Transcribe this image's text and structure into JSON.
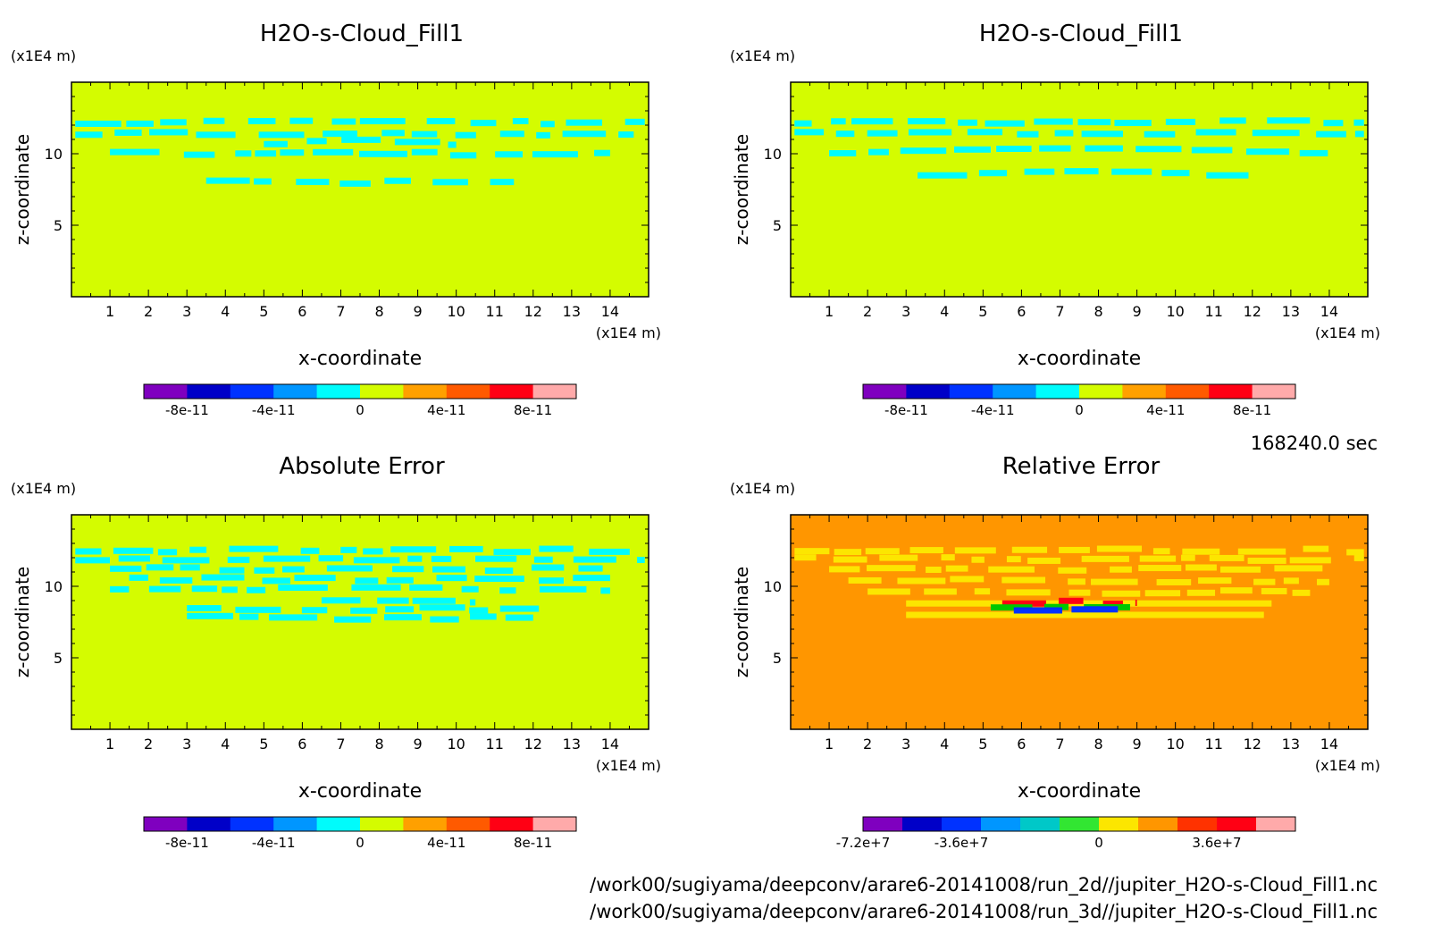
{
  "figure": {
    "time_label": "168240.0 sec",
    "file_paths": [
      "/work00/sugiyama/deepconv/arare6-20141008/run_2d//jupiter_H2O-s-Cloud_Fill1.nc",
      "/work00/sugiyama/deepconv/arare6-20141008/run_3d//jupiter_H2O-s-Cloud_Fill1.nc"
    ]
  },
  "chart_data": [
    {
      "type": "heatmap",
      "title": "H2O-s-Cloud_Fill1",
      "xlabel": "x-coordinate",
      "ylabel": "z-coordinate",
      "x_unit": "(x1E4 m)",
      "y_unit": "(x1E4 m)",
      "xlim": [
        0,
        15
      ],
      "ylim": [
        0,
        15
      ],
      "xticks": [
        "1",
        "2",
        "3",
        "4",
        "5",
        "6",
        "7",
        "8",
        "9",
        "10",
        "11",
        "12",
        "13",
        "14"
      ],
      "yticks": [
        "5",
        "10"
      ],
      "background_color": "#d4fc00",
      "field": [
        {
          "color": "#00fcfc",
          "z": 12.2,
          "x_from": 0.1,
          "x_to": 14.9,
          "pattern": "broken"
        },
        {
          "color": "#00fcfc",
          "z": 11.4,
          "x_from": 0.1,
          "x_to": 14.9,
          "pattern": "broken"
        },
        {
          "color": "#00fcfc",
          "z": 10.6,
          "x_from": 5.0,
          "x_to": 10.0,
          "pattern": "arch"
        },
        {
          "color": "#00fcfc",
          "z": 10.0,
          "x_from": 1.0,
          "x_to": 14.0,
          "pattern": "broken"
        },
        {
          "color": "#00fcfc",
          "z": 8.0,
          "x_from": 3.5,
          "x_to": 11.5,
          "pattern": "broken"
        }
      ],
      "colorbar": {
        "colors": [
          "#7f00bf",
          "#0000c8",
          "#0032ff",
          "#0096ff",
          "#00fcfc",
          "#d4fc00",
          "#ffa000",
          "#ff5a00",
          "#ff0014",
          "#ffaaaa"
        ],
        "tick_labels": [
          "-8e-11",
          "-4e-11",
          "0",
          "4e-11",
          "8e-11"
        ]
      }
    },
    {
      "type": "heatmap",
      "title": "H2O-s-Cloud_Fill1",
      "xlabel": "x-coordinate",
      "ylabel": "z-coordinate",
      "x_unit": "(x1E4 m)",
      "y_unit": "(x1E4 m)",
      "xlim": [
        0,
        15
      ],
      "ylim": [
        0,
        15
      ],
      "xticks": [
        "1",
        "2",
        "3",
        "4",
        "5",
        "6",
        "7",
        "8",
        "9",
        "10",
        "11",
        "12",
        "13",
        "14"
      ],
      "yticks": [
        "5",
        "10"
      ],
      "background_color": "#d4fc00",
      "field": [
        {
          "color": "#00fcfc",
          "z": 12.2,
          "x_from": 0.1,
          "x_to": 14.9,
          "pattern": "broken"
        },
        {
          "color": "#00fcfc",
          "z": 11.4,
          "x_from": 0.1,
          "x_to": 14.9,
          "pattern": "broken"
        },
        {
          "color": "#00fcfc",
          "z": 10.0,
          "x_from": 1.0,
          "x_to": 14.0,
          "pattern": "arch"
        },
        {
          "color": "#00fcfc",
          "z": 8.4,
          "x_from": 3.3,
          "x_to": 12.0,
          "pattern": "arch"
        }
      ],
      "colorbar": {
        "colors": [
          "#7f00bf",
          "#0000c8",
          "#0032ff",
          "#0096ff",
          "#00fcfc",
          "#d4fc00",
          "#ffa000",
          "#ff5a00",
          "#ff0014",
          "#ffaaaa"
        ],
        "tick_labels": [
          "-8e-11",
          "-4e-11",
          "0",
          "4e-11",
          "8e-11"
        ]
      }
    },
    {
      "type": "heatmap",
      "title": "Absolute Error",
      "xlabel": "x-coordinate",
      "ylabel": "z-coordinate",
      "x_unit": "(x1E4 m)",
      "y_unit": "(x1E4 m)",
      "xlim": [
        0,
        15
      ],
      "ylim": [
        0,
        15
      ],
      "xticks": [
        "1",
        "2",
        "3",
        "4",
        "5",
        "6",
        "7",
        "8",
        "9",
        "10",
        "11",
        "12",
        "13",
        "14"
      ],
      "yticks": [
        "5",
        "10"
      ],
      "background_color": "#d4fc00",
      "field": [
        {
          "color": "#00fcfc",
          "z": 12.5,
          "x_from": 0.1,
          "x_to": 14.9,
          "pattern": "broken"
        },
        {
          "color": "#00fcfc",
          "z": 11.9,
          "x_from": 0.1,
          "x_to": 14.9,
          "pattern": "broken"
        },
        {
          "color": "#00fcfc",
          "z": 11.2,
          "x_from": 1.0,
          "x_to": 14.0,
          "pattern": "broken"
        },
        {
          "color": "#00fcfc",
          "z": 10.5,
          "x_from": 1.5,
          "x_to": 14.0,
          "pattern": "broken"
        },
        {
          "color": "#00fcfc",
          "z": 9.8,
          "x_from": 1.0,
          "x_to": 14.0,
          "pattern": "broken"
        },
        {
          "color": "#00fcfc",
          "z": 9.0,
          "x_from": 6.5,
          "x_to": 10.5,
          "pattern": "broken"
        },
        {
          "color": "#00fcfc",
          "z": 8.4,
          "x_from": 3.0,
          "x_to": 12.3,
          "pattern": "broken"
        },
        {
          "color": "#00fcfc",
          "z": 7.8,
          "x_from": 3.0,
          "x_to": 12.0,
          "pattern": "broken"
        }
      ],
      "colorbar": {
        "colors": [
          "#7f00bf",
          "#0000c8",
          "#0032ff",
          "#0096ff",
          "#00fcfc",
          "#d4fc00",
          "#ffa000",
          "#ff5a00",
          "#ff0014",
          "#ffaaaa"
        ],
        "tick_labels": [
          "-8e-11",
          "-4e-11",
          "0",
          "4e-11",
          "8e-11"
        ]
      }
    },
    {
      "type": "heatmap",
      "title": "Relative Error",
      "xlabel": "x-coordinate",
      "ylabel": "z-coordinate",
      "x_unit": "(x1E4 m)",
      "y_unit": "(x1E4 m)",
      "xlim": [
        0,
        15
      ],
      "ylim": [
        0,
        15
      ],
      "xticks": [
        "1",
        "2",
        "3",
        "4",
        "5",
        "6",
        "7",
        "8",
        "9",
        "10",
        "11",
        "12",
        "13",
        "14"
      ],
      "yticks": [
        "5",
        "10"
      ],
      "background_color": "#ff9600",
      "field": [
        {
          "color": "#fce600",
          "z": 12.5,
          "x_from": 0.1,
          "x_to": 14.9,
          "pattern": "broken"
        },
        {
          "color": "#fce600",
          "z": 11.9,
          "x_from": 0.1,
          "x_to": 14.9,
          "pattern": "broken"
        },
        {
          "color": "#fce600",
          "z": 11.2,
          "x_from": 1.0,
          "x_to": 14.0,
          "pattern": "broken"
        },
        {
          "color": "#fce600",
          "z": 10.4,
          "x_from": 1.5,
          "x_to": 14.0,
          "pattern": "broken"
        },
        {
          "color": "#fce600",
          "z": 9.6,
          "x_from": 2.0,
          "x_to": 13.5,
          "pattern": "broken"
        },
        {
          "color": "#fce600",
          "z": 8.8,
          "x_from": 3.0,
          "x_to": 12.5,
          "pattern": "solid"
        },
        {
          "color": "#fce600",
          "z": 8.0,
          "x_from": 3.0,
          "x_to": 12.3,
          "pattern": "solid"
        },
        {
          "color": "#ff0014",
          "z": 8.9,
          "x_from": 5.5,
          "x_to": 9.0,
          "pattern": "broken"
        },
        {
          "color": "#00c800",
          "z": 8.6,
          "x_from": 5.2,
          "x_to": 9.3,
          "pattern": "broken"
        },
        {
          "color": "#0032ff",
          "z": 8.3,
          "x_from": 5.8,
          "x_to": 8.6,
          "pattern": "broken"
        }
      ],
      "colorbar": {
        "colors": [
          "#7f00bf",
          "#0000c8",
          "#0032ff",
          "#0096ff",
          "#00c8c8",
          "#32e632",
          "#fce600",
          "#ff9600",
          "#ff3200",
          "#ff0014",
          "#ffaaaa"
        ],
        "tick_labels": [
          "-7.2e+7",
          "-3.6e+7",
          "0",
          "3.6e+7"
        ]
      }
    }
  ]
}
